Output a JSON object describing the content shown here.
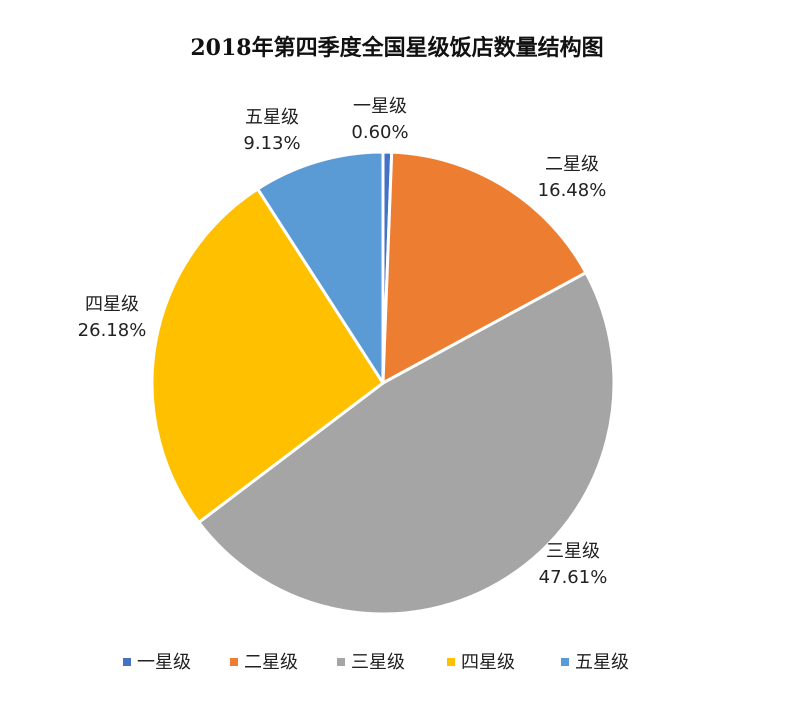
{
  "chart_data": {
    "type": "pie",
    "title": "2018年第四季度全国星级饭店数量结构图",
    "categories": [
      "一星级",
      "二星级",
      "三星级",
      "四星级",
      "五星级"
    ],
    "values": [
      0.6,
      16.48,
      47.61,
      26.18,
      9.13
    ],
    "value_labels": [
      "0.60%",
      "16.48%",
      "47.61%",
      "26.18%",
      "9.13%"
    ],
    "colors": [
      "#4472C4",
      "#ED7D31",
      "#A5A5A5",
      "#FFC000",
      "#5B9BD5"
    ],
    "legend_position": "bottom"
  }
}
